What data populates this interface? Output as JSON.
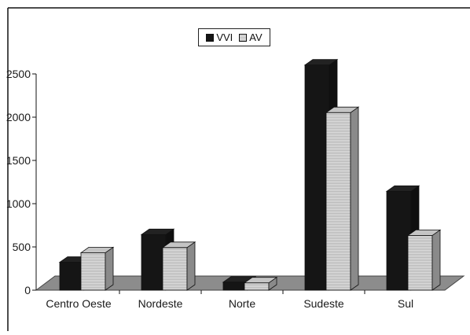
{
  "chart_data": {
    "type": "bar",
    "categories": [
      "Centro Oeste",
      "Nordeste",
      "Norte",
      "Sudeste",
      "Sul"
    ],
    "series": [
      {
        "name": "VVI",
        "values": [
          250,
          570,
          20,
          2530,
          1070
        ],
        "color": "#151515"
      },
      {
        "name": "AV",
        "values": [
          360,
          420,
          12,
          1980,
          560
        ],
        "color": "#d4d4d4"
      }
    ],
    "ylim": [
      0,
      2500
    ],
    "yticks": [
      "0",
      "500",
      "1000",
      "1500",
      "2000",
      "2500"
    ],
    "legend_position": "top-center",
    "grid": false,
    "style": "3d-clustered"
  }
}
